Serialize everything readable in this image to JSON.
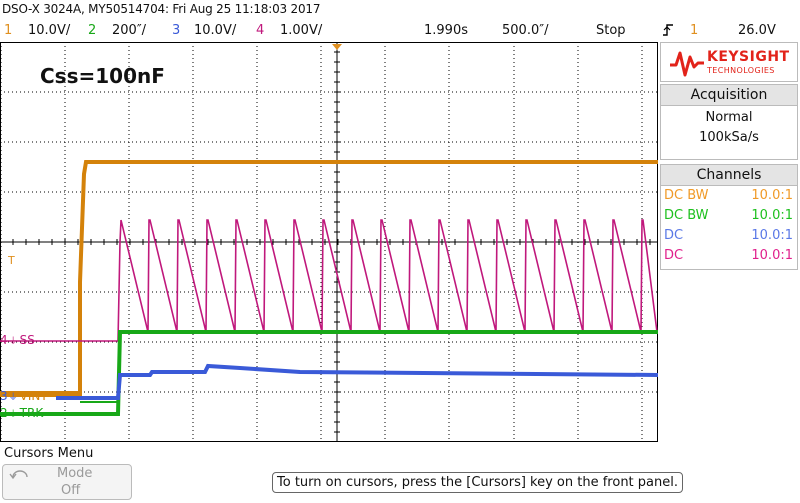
{
  "header": {
    "instrument": "DSO-X 3024A, MY50514704: Fri Aug 25 11:18:03 2017"
  },
  "channels_bar": {
    "ch1_num": "1",
    "ch1_scale": "10.0V/",
    "ch2_num": "2",
    "ch2_scale": "200″/",
    "ch3_num": "3",
    "ch3_scale": "10.0V/",
    "ch4_num": "4",
    "ch4_scale": "1.00V/",
    "time_pos": "1.990s",
    "time_scale": "500.0″/",
    "run_state": "Stop",
    "trigger_icon": "trigger-rising-edge-icon",
    "trigger_channel": "1",
    "trigger_level": "26.0V"
  },
  "annotation": "Css=100nF",
  "trace_labels": {
    "ch4_num": "4",
    "ch4": "SS",
    "ch3_num": "3",
    "ch3": "VINT",
    "ch2_num": "2",
    "ch2": "TRK",
    "trigger_marker": "T"
  },
  "brand": {
    "name": "KEYSIGHT",
    "sub": "TECHNOLOGIES",
    "logo_color": "#e2231a"
  },
  "acquisition": {
    "title": "Acquisition",
    "mode": "Normal",
    "rate": "100kSa/s"
  },
  "channels_panel": {
    "title": "Channels",
    "rows": [
      {
        "coupling": "DC BW",
        "probe": "10.0:1",
        "color": "#f09a28"
      },
      {
        "coupling": "DC BW",
        "probe": "10.0:1",
        "color": "#1ec01e"
      },
      {
        "coupling": "DC",
        "probe": "10.0:1",
        "color": "#5a78e6"
      },
      {
        "coupling": "DC",
        "probe": "10.0:1",
        "color": "#e0208c"
      }
    ]
  },
  "cursors_menu": {
    "title": "Cursors Menu",
    "mode_label": "Mode",
    "mode_value": "Off",
    "hint": "To turn on cursors, press the [Cursors] key on the front panel."
  },
  "colors": {
    "ch1": "#d4820a",
    "ch2": "#18a818",
    "ch3": "#3a5ad8",
    "ch4": "#c0187c",
    "annotation": "#e8141e",
    "grid": "#000000"
  }
}
